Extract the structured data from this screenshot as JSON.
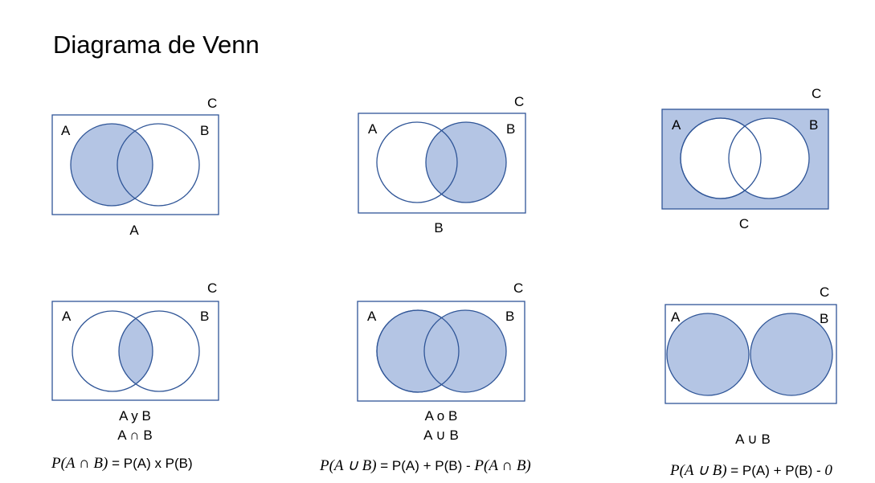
{
  "title": "Diagrama de Venn",
  "colors": {
    "fill": "#b4c5e4",
    "stroke": "#2f5597",
    "hatch": "#9fb2d6"
  },
  "diagrams": [
    {
      "label_a": "A",
      "label_b": "B",
      "label_c": "C",
      "caption": "A"
    },
    {
      "label_a": "A",
      "label_b": "B",
      "label_c": "C",
      "caption": "B"
    },
    {
      "label_a": "A",
      "label_b": "B",
      "label_c": "C",
      "caption": "C"
    },
    {
      "label_a": "A",
      "label_b": "B",
      "label_c": "C",
      "caption_1": "A y B",
      "caption_2": "A ∩ B"
    },
    {
      "label_a": "A",
      "label_b": "B",
      "label_c": "C",
      "caption_1": "A o B",
      "caption_2": "A ∪ B"
    },
    {
      "label_a": "A",
      "label_b": "B",
      "label_c": "C",
      "caption": "A ∪ B"
    }
  ],
  "formulas": [
    {
      "math": "P(A ∩ B)",
      "text": " = P(A) x P(B)"
    },
    {
      "math_1": "P(A ∪ B)",
      "text": " = P(A) + P(B) - ",
      "math_2": "P(A ∩ B)"
    },
    {
      "math_1": "P(A ∪ B)",
      "text": " = P(A) + P(B) - ",
      "math_2": "0"
    }
  ]
}
